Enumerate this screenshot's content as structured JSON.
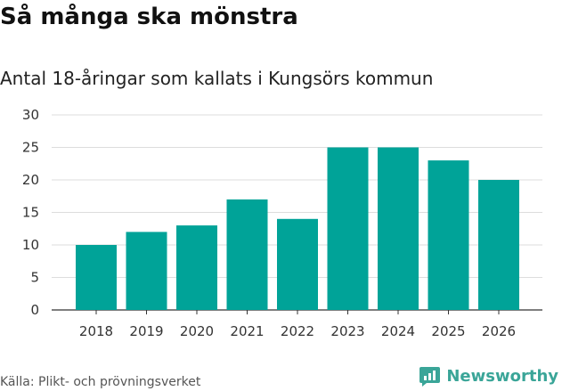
{
  "header": {
    "title": "Så många ska mönstra",
    "subtitle": "Antal 18-åringar som kallats i Kungsörs kommun"
  },
  "footer": {
    "source": "Källa: Plikt- och prövningsverket",
    "brand": "Newsworthy"
  },
  "colors": {
    "bar": "#00a398",
    "brand": "#3aa598",
    "grid": "#dddddd"
  },
  "chart_data": {
    "type": "bar",
    "title": "Så många ska mönstra",
    "subtitle": "Antal 18-åringar som kallats i Kungsörs kommun",
    "xlabel": "",
    "ylabel": "",
    "categories": [
      "2018",
      "2019",
      "2020",
      "2021",
      "2022",
      "2023",
      "2024",
      "2025",
      "2026"
    ],
    "values": [
      10,
      12,
      13,
      17,
      14,
      25,
      25,
      23,
      20
    ],
    "ylim": [
      0,
      30
    ],
    "yticks": [
      0,
      5,
      10,
      15,
      20,
      25,
      30
    ],
    "grid": true,
    "legend": "none"
  }
}
